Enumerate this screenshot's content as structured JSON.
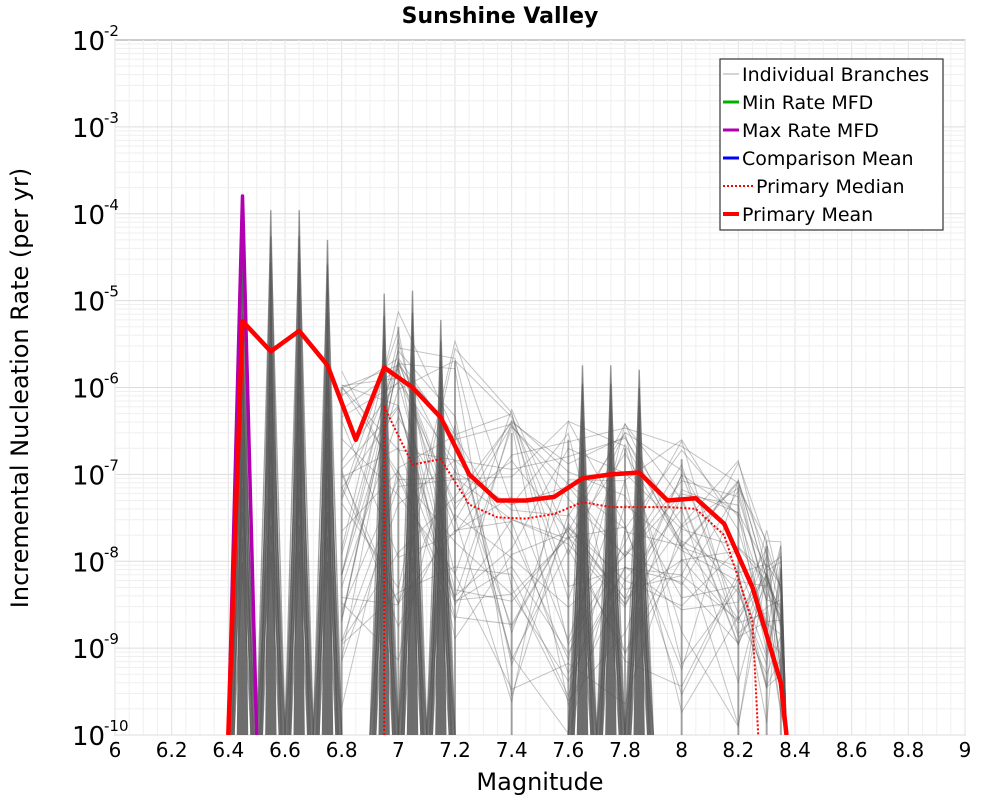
{
  "chart_data": {
    "type": "line",
    "title": "Sunshine Valley",
    "xlabel": "Magnitude",
    "ylabel": "Incremental Nucleation Rate (per yr)",
    "xlim": [
      6,
      9
    ],
    "ylim": [
      1e-10,
      0.01
    ],
    "yscale": "log",
    "grid": true,
    "legend_position": "top-right",
    "x_ticks": [
      "6",
      "6.2",
      "6.4",
      "6.6",
      "6.8",
      "7",
      "7.2",
      "7.4",
      "7.6",
      "7.8",
      "8",
      "8.2",
      "8.4",
      "8.6",
      "8.8",
      "9"
    ],
    "y_ticks": [
      {
        "base": "10",
        "exp": "-10",
        "value": 1e-10
      },
      {
        "base": "10",
        "exp": "-9",
        "value": 1e-09
      },
      {
        "base": "10",
        "exp": "-8",
        "value": 1e-08
      },
      {
        "base": "10",
        "exp": "-7",
        "value": 1e-07
      },
      {
        "base": "10",
        "exp": "-6",
        "value": 1e-06
      },
      {
        "base": "10",
        "exp": "-5",
        "value": 1e-05
      },
      {
        "base": "10",
        "exp": "-4",
        "value": 0.0001
      },
      {
        "base": "10",
        "exp": "-3",
        "value": 0.001
      },
      {
        "base": "10",
        "exp": "-2",
        "value": 0.01
      }
    ],
    "branches": {
      "name": "Individual Branches",
      "color": "#555555",
      "spikes": [
        {
          "x": 6.45,
          "peak": 5e-05
        },
        {
          "x": 6.55,
          "peak": 0.00011
        },
        {
          "x": 6.65,
          "peak": 0.00011
        },
        {
          "x": 6.75,
          "peak": 5e-05
        },
        {
          "x": 6.95,
          "peak": 1.2e-05
        },
        {
          "x": 7.05,
          "peak": 1.3e-05
        },
        {
          "x": 7.15,
          "peak": 6e-06
        },
        {
          "x": 7.65,
          "peak": 1.8e-06
        },
        {
          "x": 7.75,
          "peak": 1.8e-06
        },
        {
          "x": 7.85,
          "peak": 1.6e-06
        }
      ],
      "bands": [
        {
          "x": [
            6.8,
            7.0,
            7.2,
            7.4,
            7.6,
            7.8,
            8.0,
            8.2,
            8.3,
            8.35
          ],
          "upper": [
            2e-06,
            1e-05,
            4e-06,
            6e-07,
            5e-07,
            4e-07,
            3e-07,
            1.5e-07,
            3e-08,
            1.7e-08
          ],
          "lower": [
            1e-10,
            1e-10,
            1e-10,
            1e-10,
            1e-10,
            1e-10,
            1e-10,
            1e-10,
            1e-10,
            1e-10
          ]
        }
      ]
    },
    "series": [
      {
        "name": "Min Rate MFD",
        "color": "#00b000",
        "style": "solid",
        "x": [],
        "y": []
      },
      {
        "name": "Max Rate MFD",
        "color": "#b000b0",
        "style": "solid",
        "x": [
          6.4,
          6.45,
          6.5
        ],
        "y": [
          1e-10,
          0.00016,
          1e-10
        ]
      },
      {
        "name": "Comparison Mean",
        "color": "#0000ff",
        "style": "solid",
        "x": [],
        "y": []
      },
      {
        "name": "Primary Median",
        "color": "#ff0000",
        "style": "dotted",
        "x": [
          6.95,
          6.95,
          7.05,
          7.15,
          7.25,
          7.35,
          7.45,
          7.55,
          7.65,
          7.75,
          7.85,
          7.95,
          8.05,
          8.15,
          8.25,
          8.27
        ],
        "y": [
          1e-10,
          6e-07,
          1.3e-07,
          1.5e-07,
          4.5e-08,
          3.2e-08,
          3.1e-08,
          3.5e-08,
          4.8e-08,
          4.2e-08,
          4.2e-08,
          4.2e-08,
          4e-08,
          2e-08,
          2e-09,
          1e-10
        ]
      },
      {
        "name": "Primary Mean",
        "color": "#ff0000",
        "style": "solid",
        "x": [
          6.4,
          6.45,
          6.55,
          6.65,
          6.75,
          6.85,
          6.95,
          7.05,
          7.15,
          7.25,
          7.35,
          7.45,
          7.55,
          7.65,
          7.75,
          7.85,
          7.95,
          8.05,
          8.15,
          8.25,
          8.35,
          8.37
        ],
        "y": [
          1e-10,
          5.8e-06,
          2.6e-06,
          4.5e-06,
          1.8e-06,
          2.5e-07,
          1.7e-06,
          1e-06,
          4.5e-07,
          1e-07,
          5e-08,
          5e-08,
          5.5e-08,
          9e-08,
          1e-07,
          1.05e-07,
          5e-08,
          5.3e-08,
          2.7e-08,
          5e-09,
          4e-10,
          1e-10
        ]
      }
    ],
    "legend": [
      {
        "label": "Individual Branches",
        "color": "#aaaaaa",
        "style": "thin"
      },
      {
        "label": "Min Rate MFD",
        "color": "#00b000",
        "style": "solid"
      },
      {
        "label": "Max Rate MFD",
        "color": "#b000b0",
        "style": "solid"
      },
      {
        "label": "Comparison Mean",
        "color": "#0000ff",
        "style": "solid"
      },
      {
        "label": "Primary Median",
        "color": "#ff0000",
        "style": "dotted"
      },
      {
        "label": "Primary Mean",
        "color": "#ff0000",
        "style": "thick"
      }
    ]
  }
}
